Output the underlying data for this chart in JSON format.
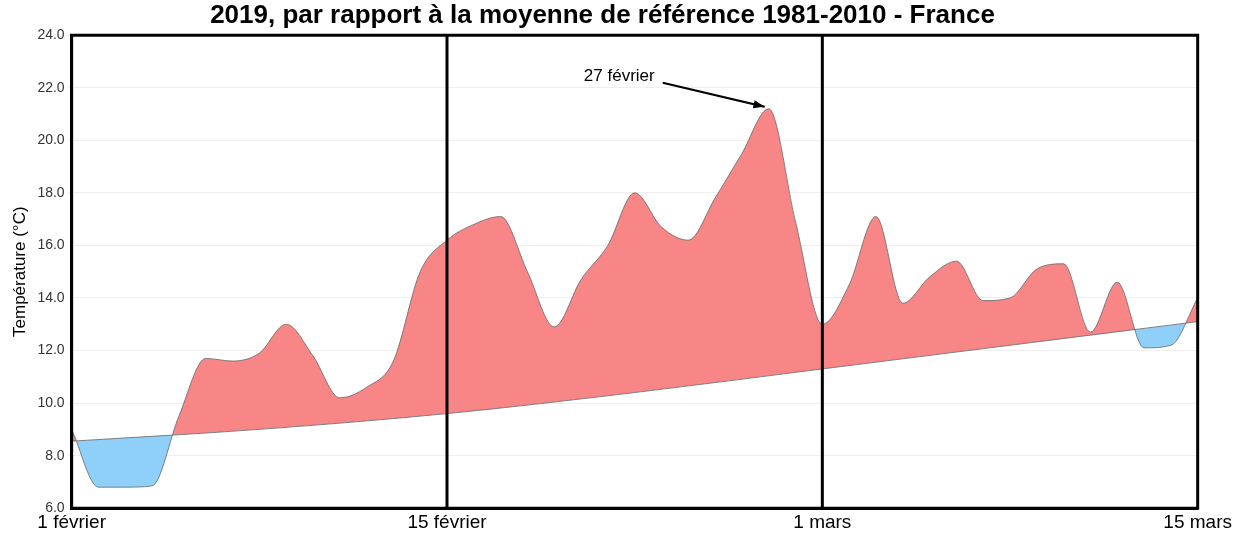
{
  "chart_data": {
    "type": "area",
    "title": "2019, par rapport à la moyenne de référence 1981-2010 - France",
    "ylabel": "Température (°C)",
    "xlim": [
      "--02-01",
      "--03-15"
    ],
    "xticks": [
      {
        "value": "--02-01",
        "label": "1 février"
      },
      {
        "value": "--02-15",
        "label": "15 février"
      },
      {
        "value": "--03-01",
        "label": "1 mars"
      },
      {
        "value": "--03-15",
        "label": "15 mars"
      }
    ],
    "ylim": [
      6,
      24
    ],
    "yticks": [
      {
        "value": 6,
        "label": "6.0"
      },
      {
        "value": 8,
        "label": "8.0"
      },
      {
        "value": 10,
        "label": "10.0"
      },
      {
        "value": 12,
        "label": "12.0"
      },
      {
        "value": 14,
        "label": "14.0"
      },
      {
        "value": 16,
        "label": "16.0"
      },
      {
        "value": 18,
        "label": "18.0"
      },
      {
        "value": 20,
        "label": "20.0"
      },
      {
        "value": 22,
        "label": "22.0"
      },
      {
        "value": 24,
        "label": "24.0"
      }
    ],
    "grid": "y",
    "legend": false,
    "marker": "none",
    "series": [
      {
        "type": "line",
        "color": "#666666",
        "x": [
          "--02-01",
          "--02-08",
          "--02-15",
          "--02-22",
          "--03-01",
          "--03-08",
          "--03-15"
        ],
        "values": [
          8.55,
          9.0,
          9.6,
          10.4,
          11.3,
          12.2,
          13.1
        ]
      },
      {
        "color": "#f98686",
        "x": [
          "--02-01",
          "--02-02",
          "--02-03",
          "--02-04",
          "--02-05",
          "--02-06",
          "--02-07",
          "--02-08",
          "--02-09",
          "--02-10",
          "--02-11",
          "--02-12",
          "--02-13",
          "--02-14",
          "--02-15",
          "--02-16",
          "--02-17",
          "--02-18",
          "--02-19",
          "--02-20",
          "--02-21",
          "--02-22",
          "--02-23",
          "--02-24",
          "--02-25",
          "--02-26",
          "--02-27",
          "--02-28",
          "--03-01",
          "--03-02",
          "--03-03",
          "--03-04",
          "--03-05",
          "--03-06",
          "--03-07",
          "--03-08",
          "--03-09",
          "--03-10",
          "--03-11",
          "--03-12",
          "--03-13",
          "--03-14",
          "--03-15"
        ],
        "values": [
          9.0,
          6.8,
          6.8,
          6.85,
          9.5,
          11.7,
          11.6,
          11.9,
          13.0,
          11.8,
          10.2,
          10.6,
          11.6,
          15.0,
          16.2,
          16.8,
          17.1,
          15.0,
          12.9,
          14.7,
          16.0,
          18.0,
          16.7,
          16.2,
          17.8,
          19.5,
          21.2,
          16.9,
          13.0,
          14.5,
          17.1,
          13.8,
          14.8,
          15.4,
          13.9,
          14.0,
          15.1,
          15.3,
          12.7,
          14.6,
          12.1,
          12.2,
          14.0
        ]
      }
    ],
    "ref_lines": [
      {
        "axis": "x",
        "value": "--02-15",
        "color": "#000000"
      },
      {
        "axis": "x",
        "value": "--03-01",
        "color": "#000000"
      }
    ],
    "annotations": [
      {
        "text": "27 février",
        "x": "--02-27",
        "y": 21.2
      }
    ]
  }
}
